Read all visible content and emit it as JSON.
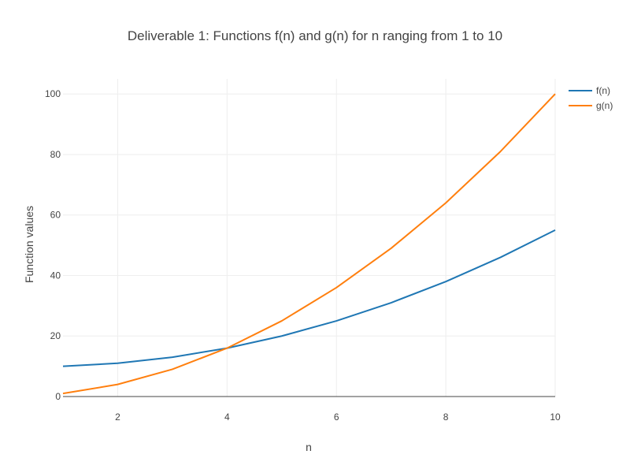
{
  "chart_data": {
    "type": "line",
    "title": "Deliverable 1: Functions f(n) and g(n) for n ranging from 1 to 10",
    "xlabel": "n",
    "ylabel": "Function values",
    "x": [
      1,
      2,
      3,
      4,
      5,
      6,
      7,
      8,
      9,
      10
    ],
    "xlim": [
      1,
      10
    ],
    "ylim": [
      0,
      105
    ],
    "x_ticks": [
      2,
      4,
      6,
      8,
      10
    ],
    "y_ticks": [
      0,
      20,
      40,
      60,
      80,
      100
    ],
    "grid": true,
    "legend_position": "top-right",
    "series": [
      {
        "name": "f(n)",
        "color": "#1f77b4",
        "values": [
          10,
          11,
          13,
          16,
          20,
          25,
          31,
          38,
          46,
          55
        ]
      },
      {
        "name": "g(n)",
        "color": "#ff7f0e",
        "values": [
          1,
          4,
          9,
          16,
          25,
          36,
          49,
          64,
          81,
          100
        ]
      }
    ]
  }
}
